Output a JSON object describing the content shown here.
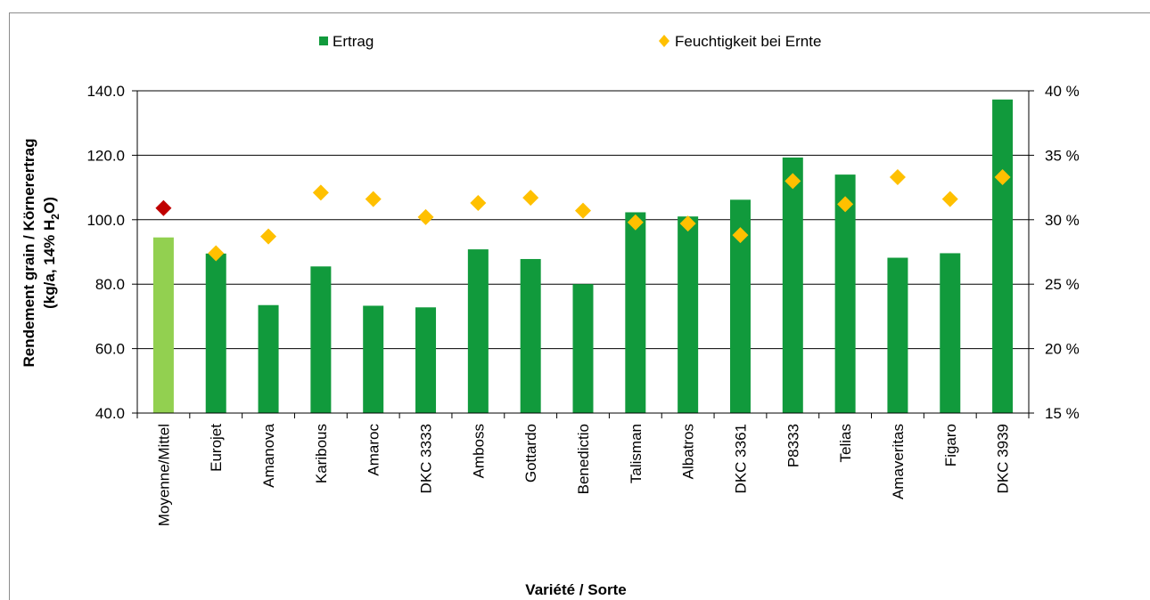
{
  "chart_data": {
    "type": "bar",
    "categories": [
      "Moyenne/Mittel",
      "Eurojet",
      "Amanova",
      "Karibous",
      "Amaroc",
      "DKC 3333",
      "Amboss",
      "Gottardo",
      "Benedictio",
      "Talisman",
      "Albatros",
      "DKC 3361",
      "P8333",
      "Telias",
      "Amaveritas",
      "Figaro",
      "DKC 3939"
    ],
    "series": [
      {
        "name": "Ertrag",
        "type": "bar",
        "axis": "left",
        "values": [
          94.5,
          89.5,
          73.5,
          85.5,
          73.3,
          72.8,
          90.8,
          87.8,
          80.0,
          102.3,
          101.0,
          106.2,
          119.3,
          114.0,
          88.2,
          89.6,
          137.3
        ]
      },
      {
        "name": "Feuchtigkeit bei Ernte",
        "type": "marker",
        "axis": "right",
        "values": [
          30.9,
          27.4,
          28.7,
          32.1,
          31.6,
          30.2,
          31.3,
          31.7,
          30.7,
          29.8,
          29.7,
          28.8,
          33.0,
          31.2,
          33.3,
          31.6,
          33.3
        ]
      }
    ],
    "ylabel_lines": [
      "Rendement grain / Körnerertrag"
    ],
    "ylabel_line2": {
      "pre": "(kg/a, 14% H",
      "sub": "2",
      "post": "O)"
    },
    "xlabel": "Variété / Sorte",
    "y_left": {
      "lim": [
        40,
        140
      ],
      "ticks": [
        "40.0",
        "60.0",
        "80.0",
        "100.0",
        "120.0",
        "140.0"
      ]
    },
    "y_right": {
      "lim": [
        15,
        40
      ],
      "ticks": [
        "15 %",
        "20 %",
        "25 %",
        "30 %",
        "35 %",
        "40 %"
      ]
    },
    "grid": true,
    "legend_position": "top",
    "colors": {
      "bar": "#119a3c",
      "bar_highlight": "#92d050",
      "marker": "#ffc000",
      "marker_highlight": "#c00000"
    }
  }
}
